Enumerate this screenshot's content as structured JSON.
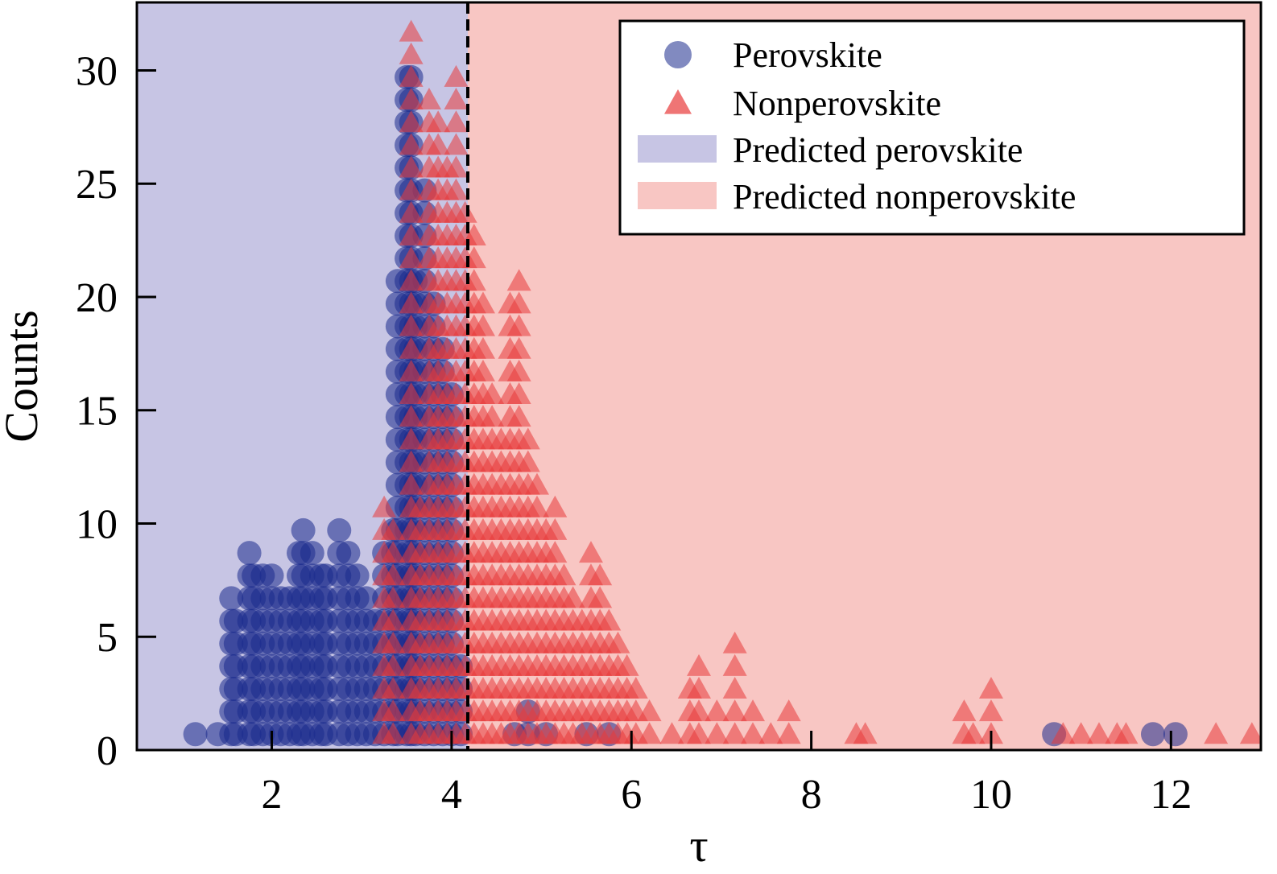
{
  "chart_data": {
    "type": "scatter",
    "title": "",
    "xlabel": "τ",
    "ylabel": "Counts",
    "xlim": [
      0.5,
      13.0
    ],
    "ylim": [
      0,
      33
    ],
    "x_ticks": [
      2,
      4,
      6,
      8,
      10,
      12
    ],
    "y_ticks": [
      0,
      5,
      10,
      15,
      20,
      25,
      30
    ],
    "x_tick_labels": [
      "2",
      "4",
      "6",
      "8",
      "10",
      "12"
    ],
    "y_tick_labels": [
      "0",
      "5",
      "10",
      "15",
      "20",
      "25",
      "30"
    ],
    "decision_threshold": 4.18,
    "grid": false,
    "legend_position": "top-right",
    "legend": [
      {
        "label": "Perovskite",
        "marker": "circle"
      },
      {
        "label": "Nonperovskite",
        "marker": "triangle"
      },
      {
        "label": "Predicted perovskite",
        "marker": "patch"
      },
      {
        "label": "Predicted nonperovskite",
        "marker": "patch"
      }
    ],
    "colors": {
      "perovskite": "#1a2a8c",
      "nonperovskite": "#e83a3a",
      "predicted_perovskite": "#c7c5e4",
      "predicted_nonperovskite": "#f8c6c3",
      "threshold_line": "#000000"
    },
    "series": [
      {
        "name": "Perovskite",
        "marker": "circle",
        "x": [
          1.15,
          1.4,
          1.55,
          1.6,
          1.75,
          1.8,
          1.9,
          2.0,
          2.1,
          2.2,
          2.3,
          2.35,
          2.45,
          2.55,
          2.6,
          2.75,
          2.85,
          2.95,
          3.05,
          3.15,
          3.25,
          3.35,
          3.4,
          3.5,
          3.55,
          3.6,
          3.7,
          3.8,
          3.9,
          4.0,
          4.1,
          4.7,
          4.85,
          5.05,
          5.5,
          5.75,
          10.7,
          11.8,
          12.05
        ],
        "y": [
          1,
          1,
          7,
          6,
          9,
          8,
          8,
          8,
          7,
          7,
          9,
          10,
          9,
          8,
          8,
          10,
          9,
          8,
          7,
          6,
          9,
          10,
          21,
          30,
          30,
          21,
          25,
          20,
          18,
          16,
          4,
          1,
          2,
          1,
          1,
          1,
          1,
          1,
          1
        ]
      },
      {
        "name": "Nonperovskite",
        "marker": "triangle",
        "x": [
          3.25,
          3.35,
          3.55,
          3.65,
          3.75,
          3.85,
          3.95,
          4.05,
          4.15,
          4.25,
          4.35,
          4.45,
          4.55,
          4.65,
          4.75,
          4.85,
          4.95,
          5.05,
          5.15,
          5.25,
          5.35,
          5.45,
          5.55,
          5.65,
          5.75,
          5.85,
          5.95,
          6.05,
          6.2,
          6.45,
          6.65,
          6.75,
          6.95,
          7.15,
          7.35,
          7.55,
          7.75,
          8.5,
          8.6,
          9.7,
          9.8,
          10.0,
          10.8,
          11.0,
          11.2,
          11.4,
          11.5,
          12.5,
          12.9
        ],
        "y": [
          11,
          10,
          32,
          11,
          29,
          28,
          26,
          30,
          24,
          23,
          20,
          16,
          14,
          20,
          21,
          14,
          12,
          10,
          11,
          8,
          7,
          6,
          9,
          8,
          6,
          5,
          4,
          3,
          2,
          1,
          3,
          4,
          2,
          5,
          2,
          1,
          2,
          1,
          1,
          2,
          1,
          3,
          1,
          1,
          1,
          1,
          1,
          1,
          1
        ]
      }
    ]
  }
}
